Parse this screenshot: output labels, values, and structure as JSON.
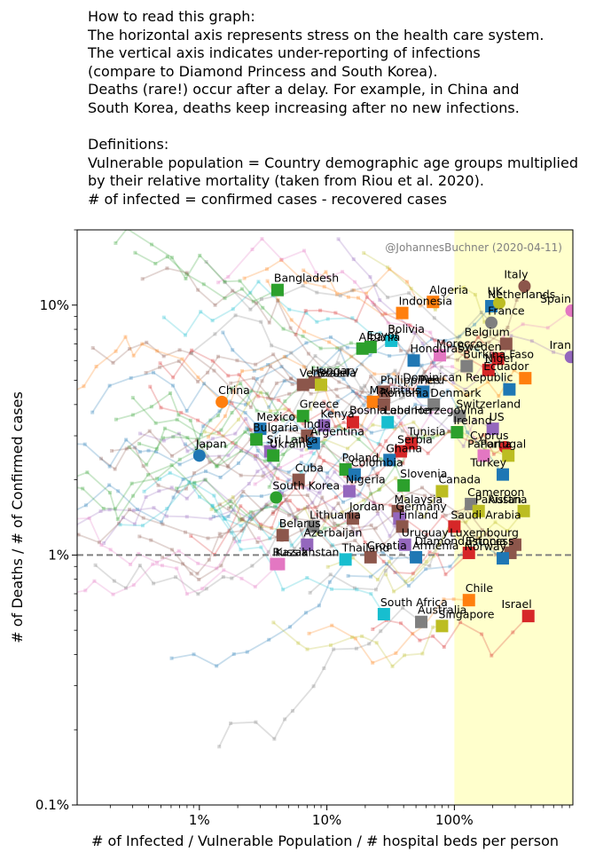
{
  "intro_lines": [
    "How to read this graph:",
    "The horizontal axis represents stress on the health care system.",
    "The vertical axis indicates under-reporting of infections",
    "(compare to Diamond Princess and South Korea).",
    "Deaths (rare!) occur after a delay. For example, in China and",
    "South Korea, deaths keep increasing after no new infections.",
    "",
    "Definitions:",
    "Vulnerable population = Country demographic age groups multiplied",
    "by their relative mortality (taken from Riou et al. 2020).",
    "# of infected = confirmed cases - recovered cases"
  ],
  "credit": "@JohannesBuchner (2020-04-11)",
  "chart_data": {
    "type": "scatter",
    "xscale": "log",
    "yscale": "log",
    "xlim": [
      0.0011,
      8.5
    ],
    "ylim": [
      0.001,
      0.2
    ],
    "xlabel": "# of Infected / Vulnerable Population / # hospital beds per person",
    "ylabel": "# of Deaths / # of Confirmed cases",
    "x_ticks": [
      {
        "value": 0.01,
        "label": "1%"
      },
      {
        "value": 0.1,
        "label": "10%"
      },
      {
        "value": 1,
        "label": "100%"
      }
    ],
    "y_ticks": [
      {
        "value": 0.001,
        "label": "0.1%"
      },
      {
        "value": 0.01,
        "label": "1%"
      },
      {
        "value": 0.1,
        "label": "10%"
      }
    ],
    "reference_line": {
      "y": 0.01,
      "style": "dashed",
      "color": "#808080"
    },
    "shaded_region": {
      "x_from": 1.0,
      "x_to": 8.5,
      "color": "#ffffcc"
    },
    "series": [
      {
        "name": "Bangladesh",
        "x": 0.041,
        "y": 0.115,
        "marker": "square",
        "color": "#2ca02c"
      },
      {
        "name": "Indonesia",
        "x": 0.39,
        "y": 0.093,
        "marker": "square",
        "color": "#ff7f0e"
      },
      {
        "name": "Algeria",
        "x": 0.68,
        "y": 0.103,
        "marker": "square",
        "color": "#ff7f0e"
      },
      {
        "name": "Netherlands",
        "x": 1.95,
        "y": 0.099,
        "marker": "square",
        "color": "#1f77b4"
      },
      {
        "name": "UK",
        "x": 2.25,
        "y": 0.102,
        "marker": "circle",
        "color": "#bcbd22"
      },
      {
        "name": "Italy",
        "x": 3.55,
        "y": 0.119,
        "marker": "circle",
        "color": "#8c564b"
      },
      {
        "name": "Spain",
        "x": 8.3,
        "y": 0.095,
        "marker": "circle",
        "color": "#e377c2"
      },
      {
        "name": "France",
        "x": 1.95,
        "y": 0.085,
        "marker": "circle",
        "color": "#7f7f7f"
      },
      {
        "name": "Bolivia",
        "x": 0.32,
        "y": 0.072,
        "marker": "square",
        "color": "#17becf"
      },
      {
        "name": "Belgium",
        "x": 2.55,
        "y": 0.07,
        "marker": "square",
        "color": "#8c564b"
      },
      {
        "name": "Albania",
        "x": 0.19,
        "y": 0.067,
        "marker": "square",
        "color": "#2ca02c"
      },
      {
        "name": "Egypt",
        "x": 0.22,
        "y": 0.068,
        "marker": "square",
        "color": "#2ca02c"
      },
      {
        "name": "Morocco",
        "x": 0.77,
        "y": 0.063,
        "marker": "square",
        "color": "#e377c2"
      },
      {
        "name": "Sweden",
        "x": 2.2,
        "y": 0.061,
        "marker": "square",
        "color": "#d62728"
      },
      {
        "name": "Iran",
        "x": 8.2,
        "y": 0.062,
        "marker": "circle",
        "color": "#9467bd"
      },
      {
        "name": "Honduras",
        "x": 0.48,
        "y": 0.06,
        "marker": "square",
        "color": "#1f77b4"
      },
      {
        "name": "Niger",
        "x": 1.85,
        "y": 0.055,
        "marker": "square",
        "color": "#d62728"
      },
      {
        "name": "Burkina Faso",
        "x": 1.25,
        "y": 0.057,
        "marker": "square",
        "color": "#7f7f7f"
      },
      {
        "name": "Ecuador",
        "x": 3.6,
        "y": 0.051,
        "marker": "square",
        "color": "#ff7f0e"
      },
      {
        "name": "Hungary",
        "x": 0.08,
        "y": 0.049,
        "marker": "square",
        "color": "#8c564b"
      },
      {
        "name": "Venezuela",
        "x": 0.065,
        "y": 0.048,
        "marker": "square",
        "color": "#8c564b"
      },
      {
        "name": "Brazil",
        "x": 0.09,
        "y": 0.048,
        "marker": "square",
        "color": "#bcbd22"
      },
      {
        "name": "Philippines",
        "x": 0.28,
        "y": 0.045,
        "marker": "square",
        "color": "#8c564b"
      },
      {
        "name": "Peru",
        "x": 0.57,
        "y": 0.045,
        "marker": "square",
        "color": "#1f77b4"
      },
      {
        "name": "Dominican Republic",
        "x": 2.7,
        "y": 0.046,
        "marker": "square",
        "color": "#1f77b4"
      },
      {
        "name": "China",
        "x": 0.015,
        "y": 0.041,
        "marker": "circle",
        "color": "#ff7f0e"
      },
      {
        "name": "Denmark",
        "x": 0.69,
        "y": 0.04,
        "marker": "square",
        "color": "#7f7f7f"
      },
      {
        "name": "Greece",
        "x": 0.065,
        "y": 0.036,
        "marker": "square",
        "color": "#2ca02c"
      },
      {
        "name": "Mauritius",
        "x": 0.23,
        "y": 0.041,
        "marker": "square",
        "color": "#ff7f0e"
      },
      {
        "name": "Romania",
        "x": 0.28,
        "y": 0.04,
        "marker": "square",
        "color": "#8c564b"
      },
      {
        "name": "Bosnia and Herzegovina",
        "x": 0.16,
        "y": 0.034,
        "marker": "square",
        "color": "#d62728"
      },
      {
        "name": "Switzerland",
        "x": 1.1,
        "y": 0.036,
        "marker": "square",
        "color": "#7f7f7f"
      },
      {
        "name": "Kenya",
        "x": 0.095,
        "y": 0.033,
        "marker": "square",
        "color": "#9467bd"
      },
      {
        "name": "Lebanon",
        "x": 0.3,
        "y": 0.034,
        "marker": "square",
        "color": "#17becf"
      },
      {
        "name": "Mexico",
        "x": 0.03,
        "y": 0.032,
        "marker": "square",
        "color": "#1f77b4"
      },
      {
        "name": "Ireland",
        "x": 1.05,
        "y": 0.031,
        "marker": "square",
        "color": "#2ca02c"
      },
      {
        "name": "US",
        "x": 2.0,
        "y": 0.032,
        "marker": "square",
        "color": "#9467bd"
      },
      {
        "name": "India",
        "x": 0.07,
        "y": 0.03,
        "marker": "square",
        "color": "#8c564b"
      },
      {
        "name": "Bulgaria",
        "x": 0.028,
        "y": 0.029,
        "marker": "square",
        "color": "#2ca02c"
      },
      {
        "name": "Argentina",
        "x": 0.079,
        "y": 0.028,
        "marker": "square",
        "color": "#1f77b4"
      },
      {
        "name": "Tunisia",
        "x": 0.46,
        "y": 0.028,
        "marker": "square",
        "color": "#d62728"
      },
      {
        "name": "Cyprus",
        "x": 2.5,
        "y": 0.027,
        "marker": "circle",
        "color": "#d62728"
      },
      {
        "name": "Sri Lanka",
        "x": 0.036,
        "y": 0.026,
        "marker": "square",
        "color": "#9467bd"
      },
      {
        "name": "Japan",
        "x": 0.01,
        "y": 0.025,
        "marker": "circle",
        "color": "#1f77b4"
      },
      {
        "name": "Serbia",
        "x": 0.38,
        "y": 0.026,
        "marker": "square",
        "color": "#d62728"
      },
      {
        "name": "Ukraine",
        "x": 0.038,
        "y": 0.025,
        "marker": "square",
        "color": "#2ca02c"
      },
      {
        "name": "Ghana",
        "x": 0.31,
        "y": 0.024,
        "marker": "square",
        "color": "#1f77b4"
      },
      {
        "name": "Portugal",
        "x": 1.7,
        "y": 0.025,
        "marker": "square",
        "color": "#e377c2"
      },
      {
        "name": "Panama",
        "x": 2.65,
        "y": 0.025,
        "marker": "square",
        "color": "#bcbd22"
      },
      {
        "name": "Poland",
        "x": 0.14,
        "y": 0.022,
        "marker": "square",
        "color": "#2ca02c"
      },
      {
        "name": "Colombia",
        "x": 0.165,
        "y": 0.021,
        "marker": "square",
        "color": "#1f77b4"
      },
      {
        "name": "Turkey",
        "x": 2.4,
        "y": 0.021,
        "marker": "square",
        "color": "#1f77b4"
      },
      {
        "name": "Cuba",
        "x": 0.06,
        "y": 0.02,
        "marker": "square",
        "color": "#8c564b"
      },
      {
        "name": "Slovenia",
        "x": 0.4,
        "y": 0.019,
        "marker": "square",
        "color": "#2ca02c"
      },
      {
        "name": "Nigeria",
        "x": 0.15,
        "y": 0.018,
        "marker": "square",
        "color": "#9467bd"
      },
      {
        "name": "Canada",
        "x": 0.8,
        "y": 0.018,
        "marker": "square",
        "color": "#bcbd22"
      },
      {
        "name": "South Korea",
        "x": 0.04,
        "y": 0.017,
        "marker": "circle",
        "color": "#2ca02c"
      },
      {
        "name": "Malaysia",
        "x": 0.36,
        "y": 0.015,
        "marker": "square",
        "color": "#8c564b"
      },
      {
        "name": "Cameroon",
        "x": 1.35,
        "y": 0.016,
        "marker": "square",
        "color": "#7f7f7f"
      },
      {
        "name": "Jordan",
        "x": 0.16,
        "y": 0.014,
        "marker": "square",
        "color": "#8c564b"
      },
      {
        "name": "Germany",
        "x": 0.37,
        "y": 0.014,
        "marker": "square",
        "color": "#9467bd"
      },
      {
        "name": "Pakistan",
        "x": 1.55,
        "y": 0.015,
        "marker": "square",
        "color": "#bcbd22"
      },
      {
        "name": "Austria",
        "x": 3.5,
        "y": 0.015,
        "marker": "square",
        "color": "#bcbd22"
      },
      {
        "name": "Saudi Arabia",
        "x": 1.0,
        "y": 0.013,
        "marker": "square",
        "color": "#d62728"
      },
      {
        "name": "Lithuania",
        "x": 0.078,
        "y": 0.013,
        "marker": "square",
        "color": "#7f7f7f"
      },
      {
        "name": "Finland",
        "x": 0.39,
        "y": 0.013,
        "marker": "square",
        "color": "#8c564b"
      },
      {
        "name": "Belarus",
        "x": 0.045,
        "y": 0.012,
        "marker": "square",
        "color": "#8c564b"
      },
      {
        "name": "Uruguay",
        "x": 0.41,
        "y": 0.011,
        "marker": "square",
        "color": "#9467bd"
      },
      {
        "name": "Luxembourg",
        "x": 3.0,
        "y": 0.011,
        "marker": "square",
        "color": "#8c564b"
      },
      {
        "name": "Azerbaijan",
        "x": 0.07,
        "y": 0.011,
        "marker": "square",
        "color": "#9467bd"
      },
      {
        "name": "Estonia",
        "x": 1.3,
        "y": 0.0102,
        "marker": "square",
        "color": "#d62728"
      },
      {
        "name": "Diamond Princess",
        "x": 2.75,
        "y": 0.0102,
        "marker": "square",
        "color": "#8c564b"
      },
      {
        "name": "Kazakhstan",
        "x": 0.042,
        "y": 0.0092,
        "marker": "square",
        "color": "#e377c2"
      },
      {
        "name": "Croatia",
        "x": 0.22,
        "y": 0.0098,
        "marker": "square",
        "color": "#8c564b"
      },
      {
        "name": "Armenia",
        "x": 0.5,
        "y": 0.0098,
        "marker": "square",
        "color": "#1f77b4"
      },
      {
        "name": "Norway",
        "x": 2.4,
        "y": 0.0097,
        "marker": "square",
        "color": "#1f77b4"
      },
      {
        "name": "Russia",
        "x": 0.04,
        "y": 0.0092,
        "marker": "square",
        "color": "#e377c2"
      },
      {
        "name": "Thailand",
        "x": 0.14,
        "y": 0.0096,
        "marker": "square",
        "color": "#17becf"
      },
      {
        "name": "Chile",
        "x": 1.3,
        "y": 0.0066,
        "marker": "square",
        "color": "#ff7f0e"
      },
      {
        "name": "Israel",
        "x": 3.8,
        "y": 0.0057,
        "marker": "square",
        "color": "#d62728"
      },
      {
        "name": "South Africa",
        "x": 0.28,
        "y": 0.0058,
        "marker": "square",
        "color": "#17becf"
      },
      {
        "name": "Australia",
        "x": 0.55,
        "y": 0.0054,
        "marker": "square",
        "color": "#7f7f7f"
      },
      {
        "name": "Singapore",
        "x": 0.8,
        "y": 0.0052,
        "marker": "square",
        "color": "#bcbd22"
      }
    ]
  }
}
